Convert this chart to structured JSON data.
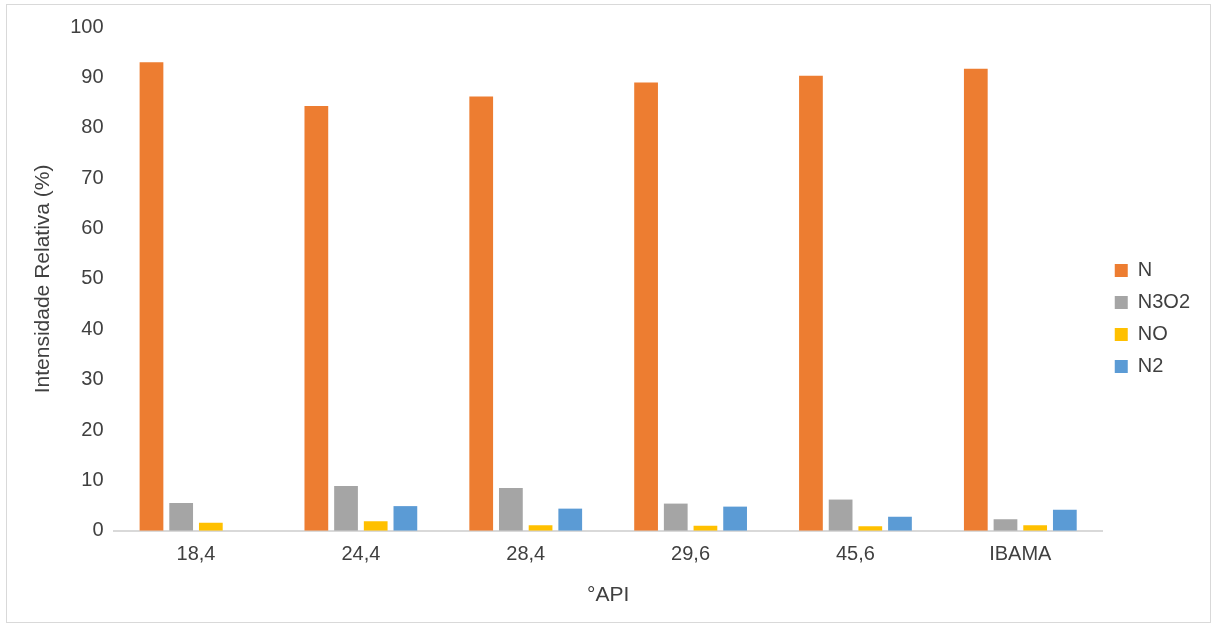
{
  "chart_data": {
    "type": "bar",
    "xlabel": "°API",
    "ylabel": "Intensidade Relativa (%)",
    "categories": [
      "18,4",
      "24,4",
      "28,4",
      "29,6",
      "45,6",
      "IBAMA"
    ],
    "series": [
      {
        "name": "N",
        "color": "#ed7d31",
        "values": [
          93.0,
          84.3,
          86.2,
          89.0,
          90.3,
          91.7
        ]
      },
      {
        "name": "N3O2",
        "color": "#a5a5a5",
        "values": [
          5.5,
          8.9,
          8.5,
          5.4,
          6.2,
          2.3
        ]
      },
      {
        "name": "NO",
        "color": "#ffc000",
        "values": [
          1.6,
          1.9,
          1.1,
          1.0,
          0.9,
          1.1
        ]
      },
      {
        "name": "N2",
        "color": "#5b9bd5",
        "values": [
          null,
          4.9,
          4.4,
          4.8,
          2.8,
          4.2
        ]
      }
    ],
    "ylim": [
      0,
      100
    ],
    "yticks": [
      0,
      10,
      20,
      30,
      40,
      50,
      60,
      70,
      80,
      90,
      100
    ],
    "grid": false,
    "legend": "right"
  }
}
